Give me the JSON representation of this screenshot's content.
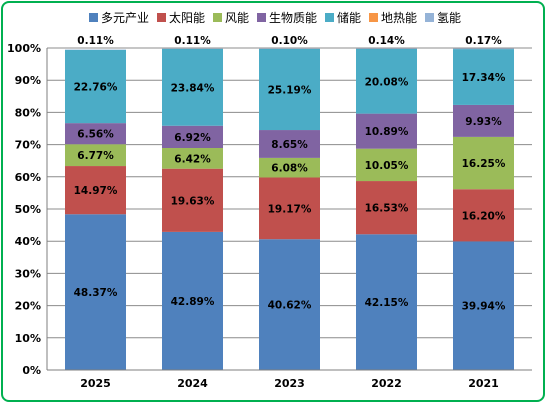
{
  "chart_data": {
    "type": "bar",
    "stacked": true,
    "percent": true,
    "categories": [
      "2025",
      "2024",
      "2023",
      "2022",
      "2021"
    ],
    "ylim": [
      0,
      100
    ],
    "yticks": [
      "0%",
      "10%",
      "20%",
      "30%",
      "40%",
      "50%",
      "60%",
      "70%",
      "80%",
      "90%",
      "100%"
    ],
    "grid": true,
    "legend_position": "top",
    "series": [
      {
        "name": "多元产业",
        "color": "#4f81bd",
        "values": [
          48.37,
          42.89,
          40.62,
          42.15,
          39.94
        ],
        "labels": [
          "48.37%",
          "42.89%",
          "40.62%",
          "42.15%",
          "39.94%"
        ]
      },
      {
        "name": "太阳能",
        "color": "#c0504d",
        "values": [
          14.97,
          19.63,
          19.17,
          16.53,
          16.2
        ],
        "labels": [
          "14.97%",
          "19.63%",
          "19.17%",
          "16.53%",
          "16.20%"
        ]
      },
      {
        "name": "风能",
        "color": "#9bbb59",
        "values": [
          6.77,
          6.42,
          6.08,
          10.05,
          16.25
        ],
        "labels": [
          "6.77%",
          "6.42%",
          "6.08%",
          "10.05%",
          "16.25%"
        ]
      },
      {
        "name": "生物质能",
        "color": "#8064a2",
        "values": [
          6.56,
          6.92,
          8.65,
          10.89,
          9.93
        ],
        "labels": [
          "6.56%",
          "6.92%",
          "8.65%",
          "10.89%",
          "9.93%"
        ]
      },
      {
        "name": "储能",
        "color": "#4bacc6",
        "values": [
          22.76,
          23.84,
          25.19,
          20.08,
          17.34
        ],
        "labels": [
          "22.76%",
          "23.84%",
          "25.19%",
          "20.08%",
          "17.34%"
        ]
      },
      {
        "name": "地热能",
        "color": "#f79646",
        "values": [
          0,
          0,
          0,
          0,
          0
        ],
        "labels": []
      },
      {
        "name": "氢能",
        "color": "#95b3d7",
        "values": [
          0.11,
          0.11,
          0.1,
          0.14,
          0.17
        ],
        "labels": [
          "0.11%",
          "0.11%",
          "0.10%",
          "0.14%",
          "0.17%"
        ]
      }
    ]
  }
}
